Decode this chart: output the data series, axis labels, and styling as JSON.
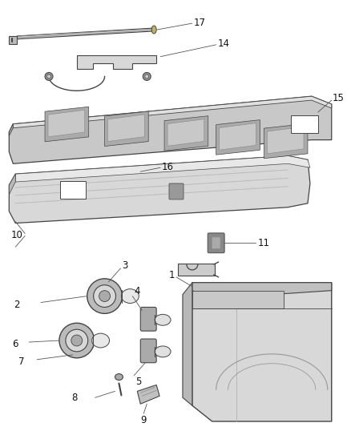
{
  "background_color": "#ffffff",
  "line_color": "#444444",
  "text_color": "#111111",
  "font_size": 8.5,
  "fig_w": 4.38,
  "fig_h": 5.33,
  "dpi": 100
}
